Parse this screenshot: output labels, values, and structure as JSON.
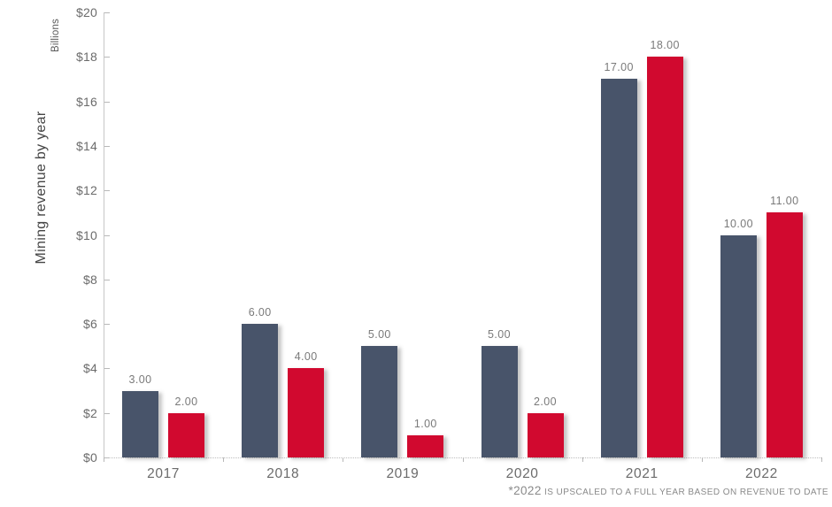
{
  "chart": {
    "y_axis_title": "Mining revenue by year",
    "y_axis_units": "Billions",
    "footnote_prefix": "*2022",
    "footnote_rest": " IS UPSCALED TO A FULL YEAR BASED ON REVENUE TO DATE"
  },
  "chart_data": {
    "type": "bar",
    "title": "",
    "ylabel": "Mining revenue by year",
    "units_label": "Billions",
    "categories": [
      "2017",
      "2018",
      "2019",
      "2020",
      "2021",
      "2022"
    ],
    "series": [
      {
        "name": "dark-blue-series",
        "color": "#48546A",
        "values": [
          3,
          6,
          5,
          5,
          17,
          10
        ]
      },
      {
        "name": "red-series",
        "color": "#D1092F",
        "values": [
          2,
          4,
          1,
          2,
          18,
          11
        ]
      }
    ],
    "data_labels": [
      "3.00",
      "2.00",
      "6.00",
      "4.00",
      "5.00",
      "1.00",
      "5.00",
      "2.00",
      "17.00",
      "18.00",
      "10.00",
      "11.00"
    ],
    "ylim": [
      0,
      20
    ],
    "y_tick_step": 2,
    "y_tick_prefix": "$",
    "y_tick_labels": [
      "$0",
      "$2",
      "$4",
      "$6",
      "$8",
      "$10",
      "$12",
      "$14",
      "$16",
      "$18",
      "$20"
    ],
    "grid": false,
    "legend": null,
    "footnote": "*2022 IS UPSCALED TO A FULL YEAR BASED ON REVENUE TO DATE"
  }
}
